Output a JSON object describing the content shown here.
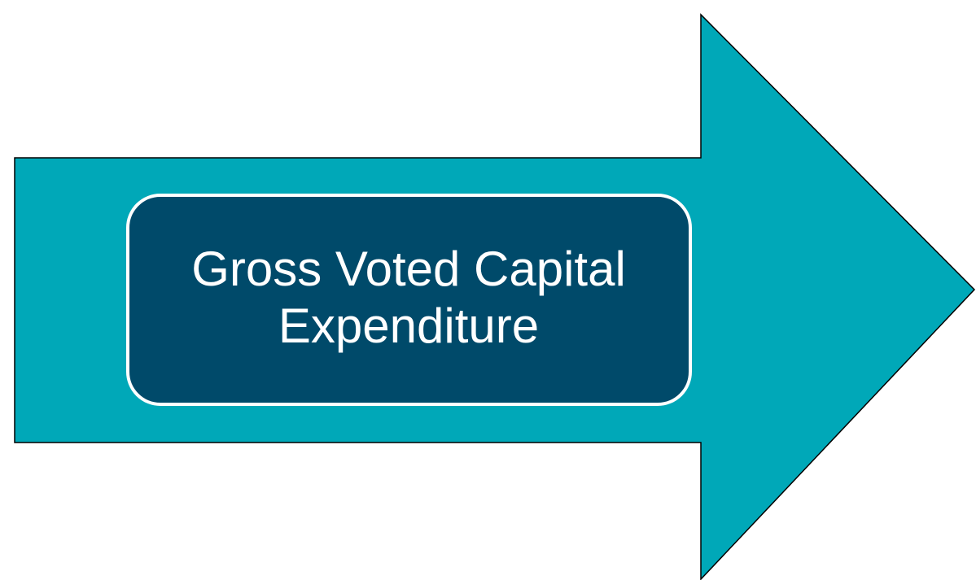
{
  "box": {
    "lines": [
      "Gross Voted Capital",
      "Expenditure"
    ]
  }
}
